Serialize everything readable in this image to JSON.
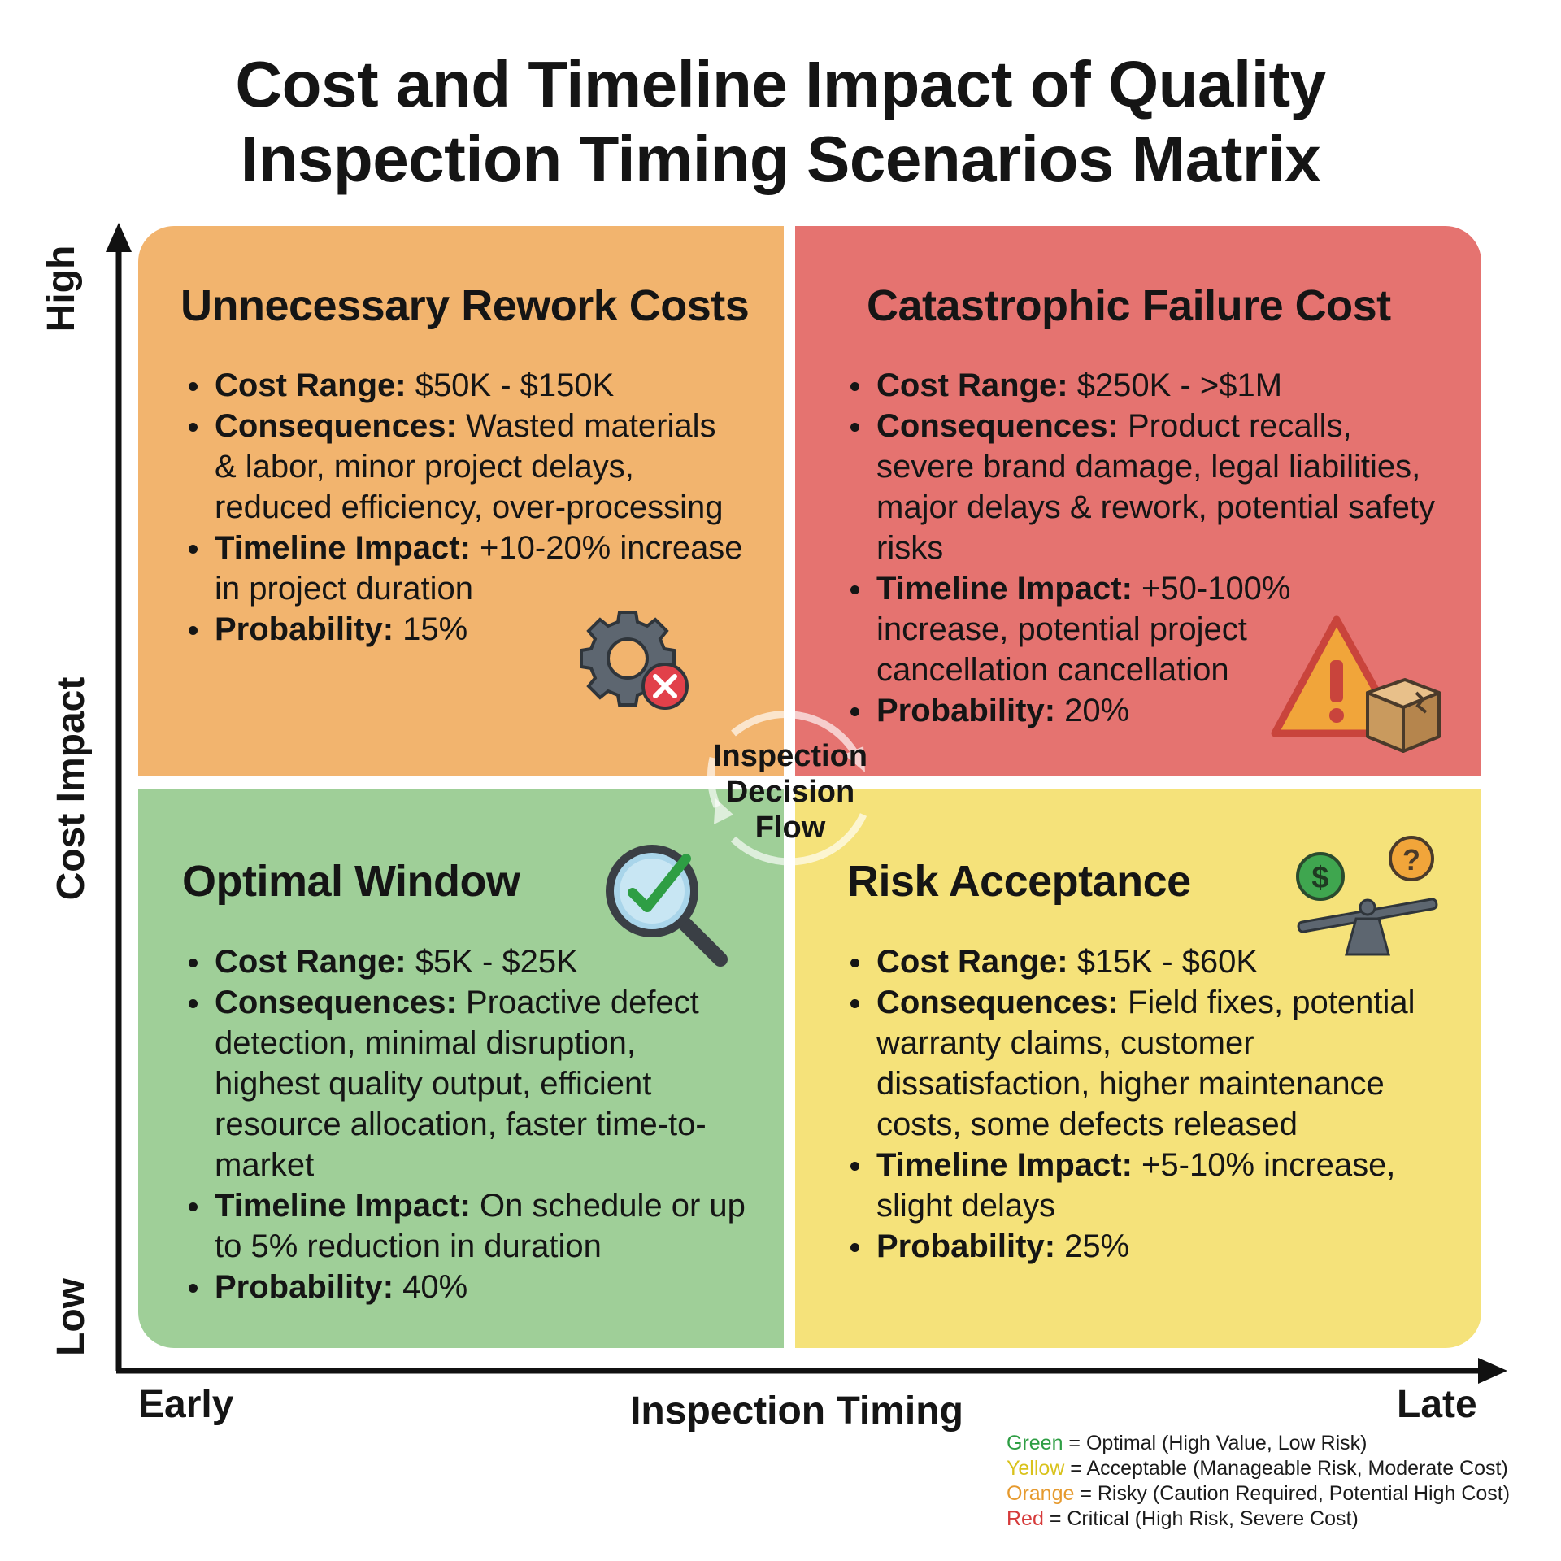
{
  "title": {
    "line1": "Cost and Timeline Impact of Quality",
    "line2": "Inspection Timing Scenarios Matrix"
  },
  "axes": {
    "y_label": "Cost Impact",
    "y_high": "High",
    "y_low": "Low",
    "x_label": "Inspection Timing",
    "x_early": "Early",
    "x_late": "Late"
  },
  "center_label": {
    "line1": "Inspection",
    "line2": "Decision",
    "line3": "Flow"
  },
  "quadrants": {
    "top_left": {
      "title": "Unnecessary Rework Costs",
      "color": "#f2b46e",
      "icon": "gear-error-icon",
      "cost_label": "Cost Range:",
      "cost_value": " $50K - $150K",
      "cons_label": "Consequences:",
      "cons_value": " Wasted materials & labor, minor project delays, reduced efficiency, over-processing",
      "time_label": "Timeline Impact:",
      "time_value": " +10-20% increase in project duration",
      "prob_label": "Probability:",
      "prob_value": " 15%"
    },
    "top_right": {
      "title": "Catastrophic Failure Cost",
      "color": "#e57370",
      "icon": "warning-broken-box-icon",
      "cost_label": "Cost Range:",
      "cost_value": " $250K - >$1M",
      "cons_label": "Consequences:",
      "cons_value": " Product recalls, severe brand damage, legal liabilities, major delays & rework, potential safety risks",
      "time_label": "Timeline Impact:",
      "time_value": " +50-100% increase, potential project cancellation cancellation",
      "prob_label": "Probability:",
      "prob_value": " 20%"
    },
    "bottom_left": {
      "title": "Optimal Window",
      "color": "#9fcf98",
      "icon": "magnifier-check-icon",
      "cost_label": "Cost Range:",
      "cost_value": " $5K - $25K",
      "cons_label": "Consequences:",
      "cons_value": " Proactive defect detection, minimal disruption, highest quality output, efficient resource allocation, faster time-to-market",
      "time_label": "Timeline Impact:",
      "time_value": " On schedule or up to 5% reduction in duration",
      "prob_label": "Probability:",
      "prob_value": " 40%"
    },
    "bottom_right": {
      "title": "Risk Acceptance",
      "color": "#f5e27a",
      "icon": "balance-scale-icon",
      "cost_label": "Cost Range:",
      "cost_value": " $15K - $60K",
      "cons_label": "Consequences:",
      "cons_value": " Field fixes, potential warranty claims, customer dissatisfaction, higher maintenance costs, some defects released",
      "time_label": "Timeline Impact:",
      "time_value": " +5-10% increase, slight delays",
      "prob_label": "Probability:",
      "prob_value": " 25%"
    }
  },
  "legend": [
    {
      "color_word": "Green",
      "color": "#2e9e44",
      "text": " = Optimal (High Value, Low Risk)"
    },
    {
      "color_word": "Yellow",
      "color": "#d9c21c",
      "text": " = Acceptable (Manageable Risk, Moderate Cost)"
    },
    {
      "color_word": "Orange",
      "color": "#e69a2e",
      "text": " = Risky (Caution Required, Potential High Cost)"
    },
    {
      "color_word": "Red",
      "color": "#d63b3b",
      "text": " = Critical (High Risk, Severe Cost)"
    }
  ]
}
